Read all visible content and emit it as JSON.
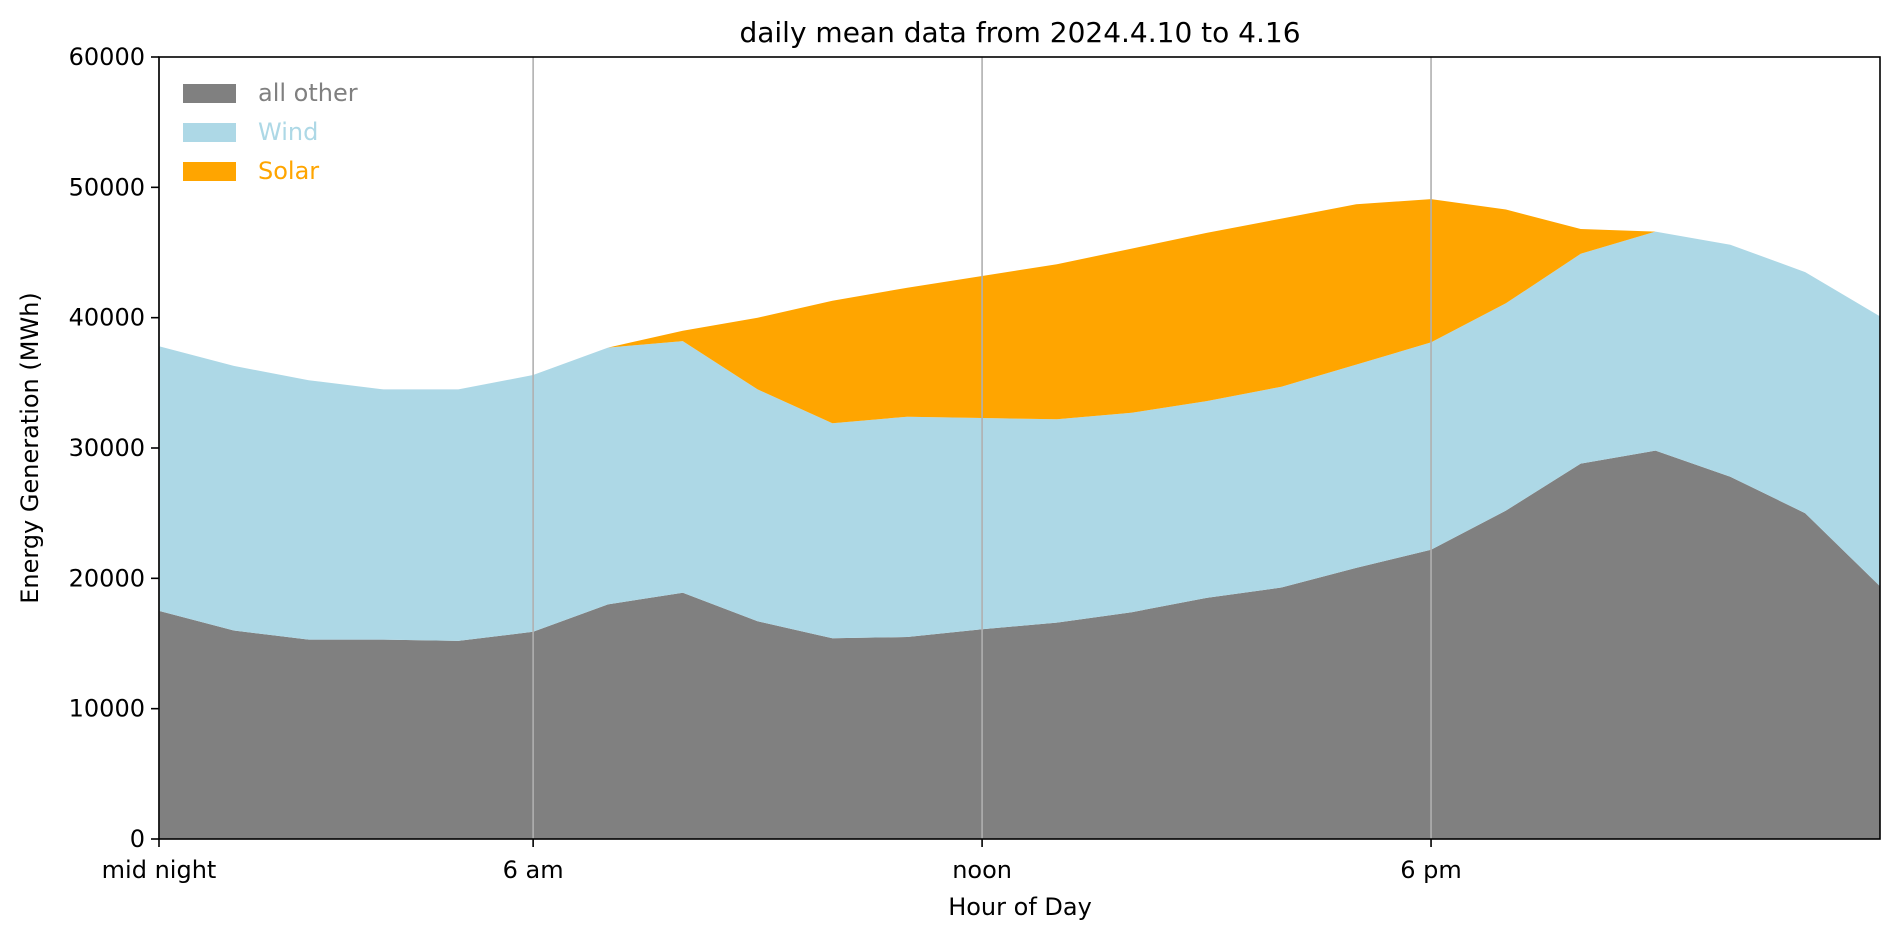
{
  "chart_data": {
    "type": "area",
    "stacked": true,
    "title": "daily mean data from 2024.4.10 to 4.16",
    "xlabel": "Hour of Day",
    "ylabel": "Energy Generation (MWh)",
    "xlim": [
      0,
      23
    ],
    "ylim": [
      0,
      60000
    ],
    "yticks": [
      0,
      10000,
      20000,
      30000,
      40000,
      50000,
      60000
    ],
    "xticks": [
      {
        "value": 0,
        "label": "mid night"
      },
      {
        "value": 5,
        "label": "6 am"
      },
      {
        "value": 11,
        "label": "noon"
      },
      {
        "value": 17,
        "label": "6 pm"
      }
    ],
    "grid": "vertical lines at x ticks",
    "legend_position": "top-left",
    "x": [
      0,
      1,
      2,
      3,
      4,
      5,
      6,
      7,
      8,
      9,
      10,
      11,
      12,
      13,
      14,
      15,
      16,
      17,
      18,
      19,
      20,
      21,
      22,
      23
    ],
    "series": [
      {
        "name": "all other",
        "color": "#808080",
        "values": [
          17500,
          16000,
          15300,
          15300,
          15200,
          15900,
          18000,
          18900,
          16700,
          15400,
          15500,
          16100,
          16600,
          17400,
          18500,
          19300,
          20800,
          22200,
          25200,
          28800,
          29800,
          27800,
          25000,
          19400
        ]
      },
      {
        "name": "Wind",
        "color": "#add8e6",
        "values": [
          20300,
          20300,
          19900,
          19200,
          19300,
          19700,
          19700,
          19300,
          17800,
          16500,
          16900,
          16200,
          15600,
          15300,
          15100,
          15400,
          15600,
          15900,
          15900,
          16100,
          16800,
          17800,
          18500,
          20700
        ]
      },
      {
        "name": "Solar",
        "color": "#ffa500",
        "values": [
          0,
          0,
          0,
          0,
          0,
          0,
          0,
          800,
          5500,
          9400,
          9900,
          10900,
          11900,
          12600,
          12900,
          12900,
          12300,
          11000,
          7200,
          1900,
          0,
          0,
          0,
          0
        ]
      }
    ]
  }
}
